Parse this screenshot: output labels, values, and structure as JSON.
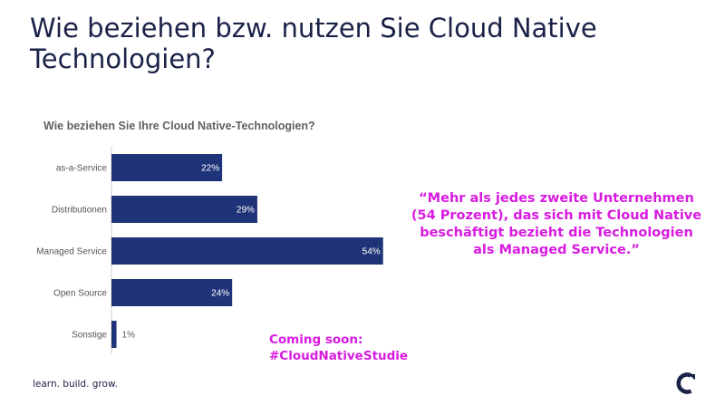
{
  "slide": {
    "title": "Wie beziehen bzw. nutzen Sie Cloud Native Technologien?",
    "quote": "“Mehr als jedes zweite Unternehmen (54 Prozent), das sich mit Cloud Native beschäftigt bezieht die Technologien als Managed Service.”",
    "coming_soon_line1": "Coming soon:",
    "coming_soon_line2": "#CloudNativeStudie",
    "tagline": "learn. build. grow.",
    "logo_icon": "c-logo-icon"
  },
  "colors": {
    "title": "#1a2247",
    "bar": "#1f3478",
    "accent": "#d81be0",
    "label": "#555555",
    "axis": "#cccccc"
  },
  "chart_data": {
    "type": "bar",
    "orientation": "horizontal",
    "title": "Wie beziehen Sie Ihre Cloud Native-Technologien?",
    "categories": [
      "as-a-Service",
      "Distributionen",
      "Managed Service",
      "Open Source",
      "Sonstige"
    ],
    "values": [
      22,
      29,
      54,
      24,
      1
    ],
    "value_labels": [
      "22%",
      "29%",
      "54%",
      "24%",
      "1%"
    ],
    "unit": "%",
    "xlim": [
      0,
      100
    ],
    "grid": false,
    "legend": "none"
  }
}
